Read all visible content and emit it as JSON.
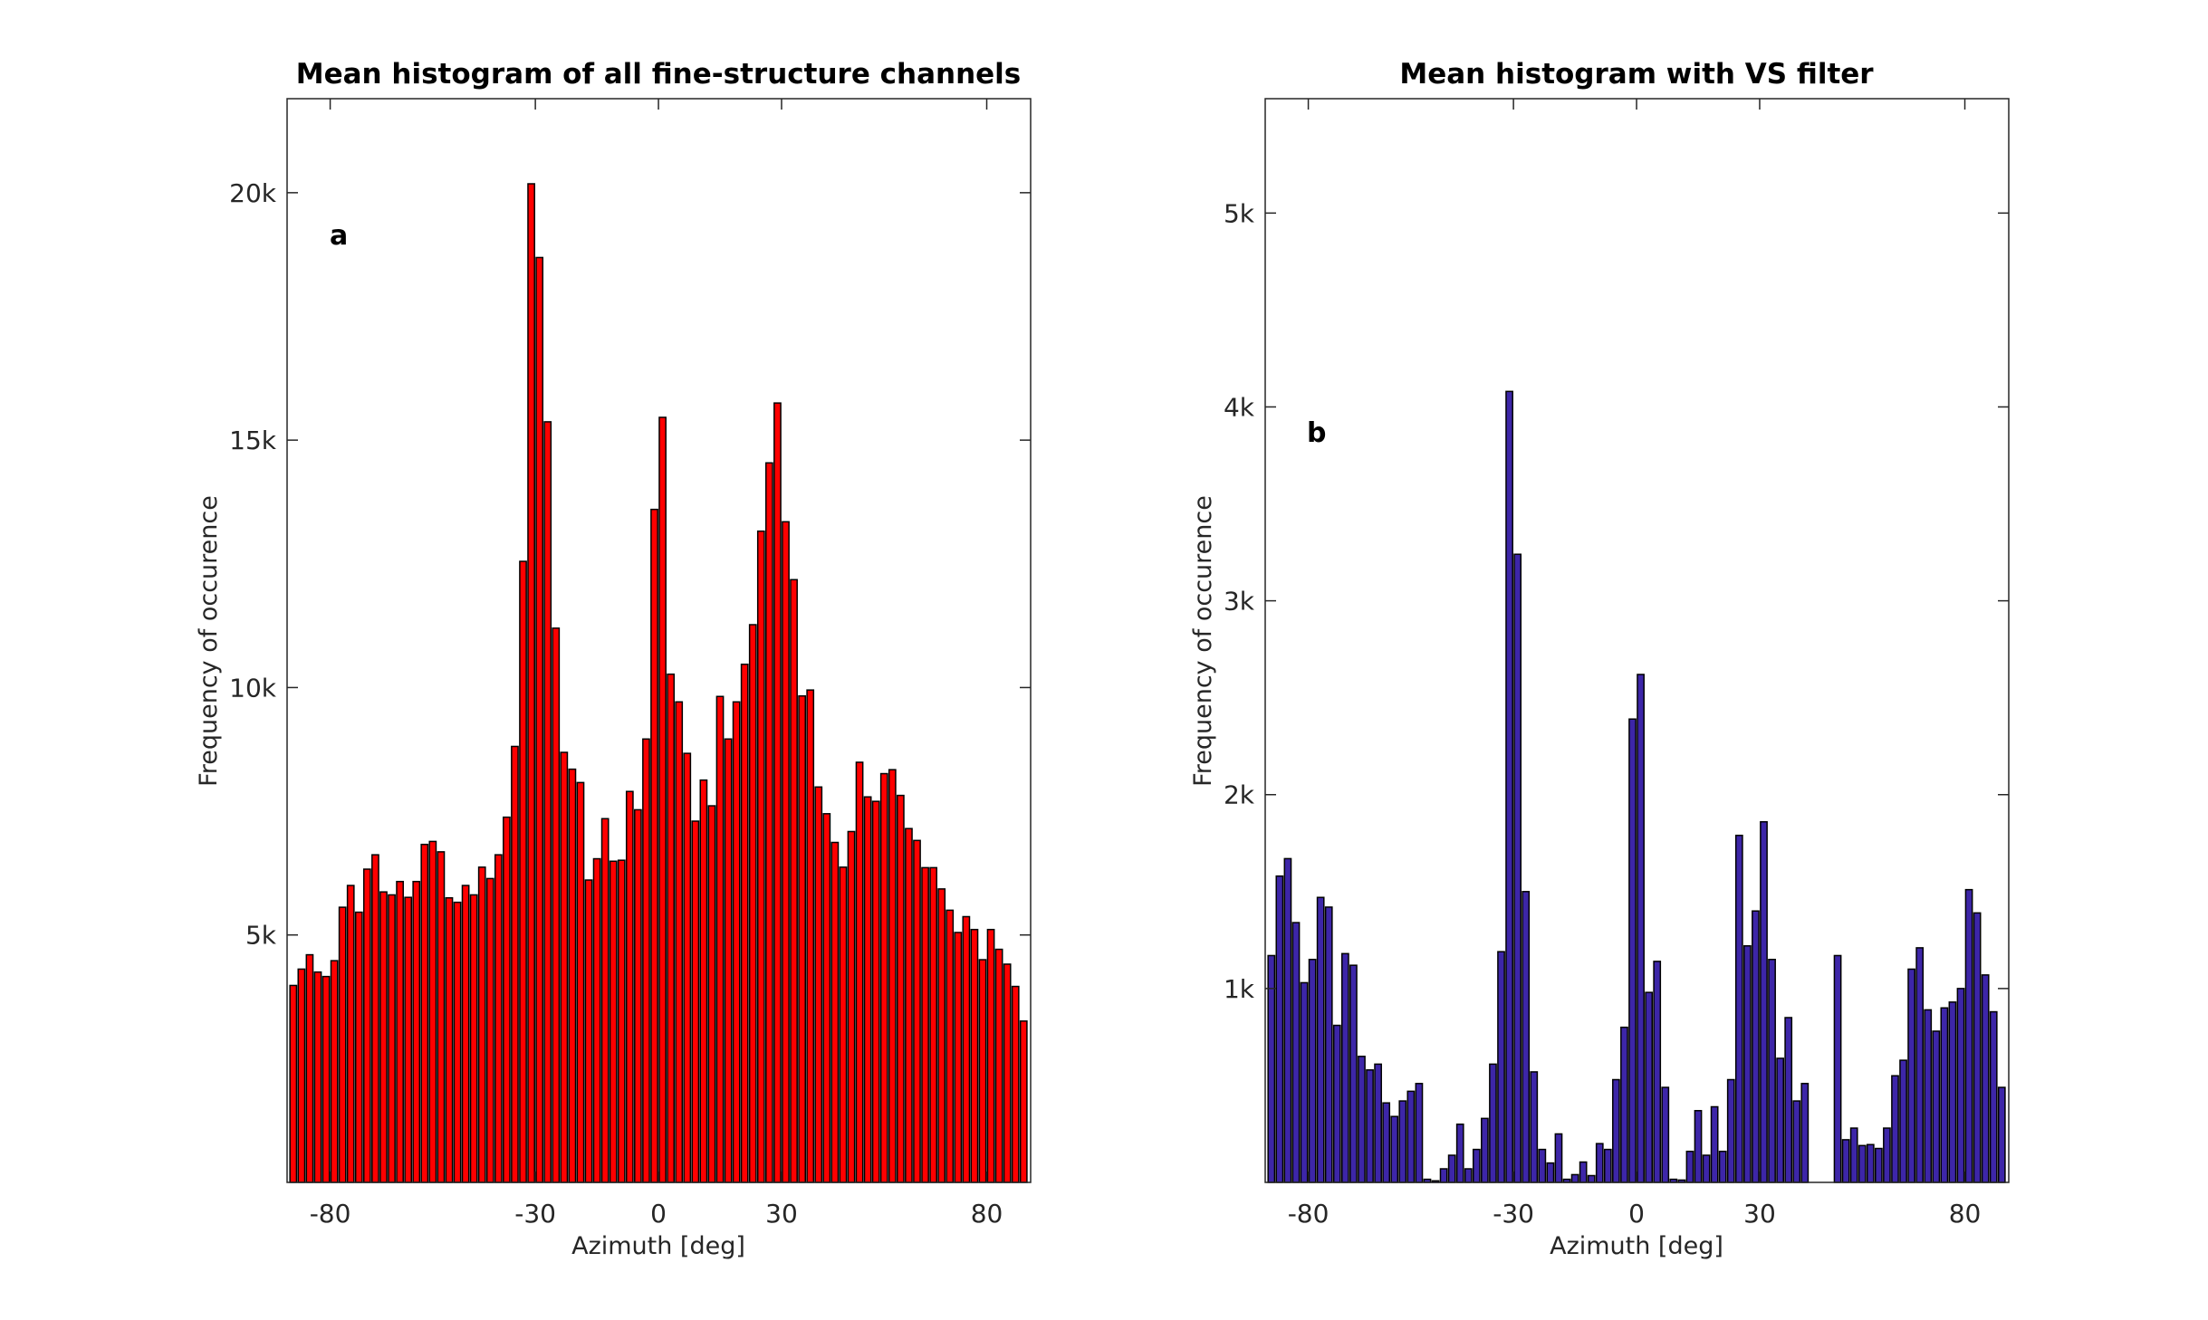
{
  "chart_data": [
    {
      "type": "bar",
      "title": "Mean histogram of all fine-structure channels",
      "panel_label": "a",
      "xlabel": "Azimuth [deg]",
      "ylabel": "Frequency of occurence",
      "xlim": [
        -90.5,
        90.7
      ],
      "ylim": [
        0,
        21900
      ],
      "xticks": [
        -80,
        -30,
        0,
        30,
        80
      ],
      "xtick_labels": [
        "-80",
        "-30",
        "0",
        "30",
        "80"
      ],
      "yticks": [
        5000,
        10000,
        15000,
        20000
      ],
      "ytick_labels": [
        "5k",
        "10k",
        "15k",
        "20k"
      ],
      "grid": false,
      "bar_color": "#ff0000",
      "edge_color": "#000000",
      "x_start": -89,
      "x_step": 2,
      "values": [
        3980,
        4310,
        4600,
        4250,
        4160,
        4480,
        5560,
        6000,
        5460,
        6330,
        6620,
        5870,
        5810,
        6080,
        5760,
        6080,
        6830,
        6890,
        6680,
        5750,
        5660,
        6000,
        5810,
        6370,
        6140,
        6620,
        7380,
        8810,
        12550,
        20180,
        18690,
        15370,
        11200,
        8690,
        8350,
        8080,
        6110,
        6540,
        7350,
        6490,
        6510,
        7900,
        7530,
        8960,
        13600,
        15460,
        10270,
        9710,
        8670,
        7300,
        8130,
        7610,
        9820,
        8960,
        9710,
        10470,
        11270,
        13160,
        14540,
        15750,
        13350,
        12180,
        9830,
        9950,
        7990,
        7450,
        6870,
        6370,
        7090,
        8490,
        7790,
        7700,
        8260,
        8340,
        7820,
        7150,
        6910,
        6360,
        6360,
        5930,
        5500,
        5050,
        5370,
        5110,
        4500,
        5110,
        4710,
        4410,
        3960,
        3260
      ]
    },
    {
      "type": "bar",
      "title": "Mean histogram with VS filter",
      "panel_label": "b",
      "xlabel": "Azimuth [deg]",
      "ylabel": "Frequency of occurence",
      "xlim": [
        -90.5,
        90.7
      ],
      "ylim": [
        0,
        5590
      ],
      "xticks": [
        -80,
        -30,
        0,
        30,
        80
      ],
      "xtick_labels": [
        "-80",
        "-30",
        "0",
        "30",
        "80"
      ],
      "yticks": [
        1000,
        2000,
        3000,
        4000,
        5000
      ],
      "ytick_labels": [
        "1k",
        "2k",
        "3k",
        "4k",
        "5k"
      ],
      "grid": false,
      "bar_color": "#3d26a8",
      "edge_color": "#000000",
      "x_start": -89,
      "x_step": 2,
      "values": [
        1170,
        1580,
        1670,
        1340,
        1030,
        1150,
        1470,
        1420,
        810,
        1180,
        1120,
        650,
        580,
        610,
        410,
        340,
        420,
        470,
        510,
        16,
        8,
        70,
        140,
        300,
        70,
        170,
        330,
        610,
        1190,
        4080,
        3240,
        1500,
        570,
        170,
        100,
        250,
        16,
        40,
        105,
        35,
        200,
        170,
        530,
        800,
        2390,
        2620,
        980,
        1140,
        490,
        16,
        12,
        160,
        370,
        140,
        390,
        160,
        530,
        1790,
        1220,
        1400,
        1860,
        1150,
        640,
        850,
        420,
        510,
        0,
        0,
        0,
        1170,
        220,
        280,
        190,
        195,
        175,
        280,
        550,
        630,
        1100,
        1210,
        890,
        780,
        900,
        930,
        1000,
        1510,
        1390,
        1070,
        880,
        490
      ]
    }
  ]
}
